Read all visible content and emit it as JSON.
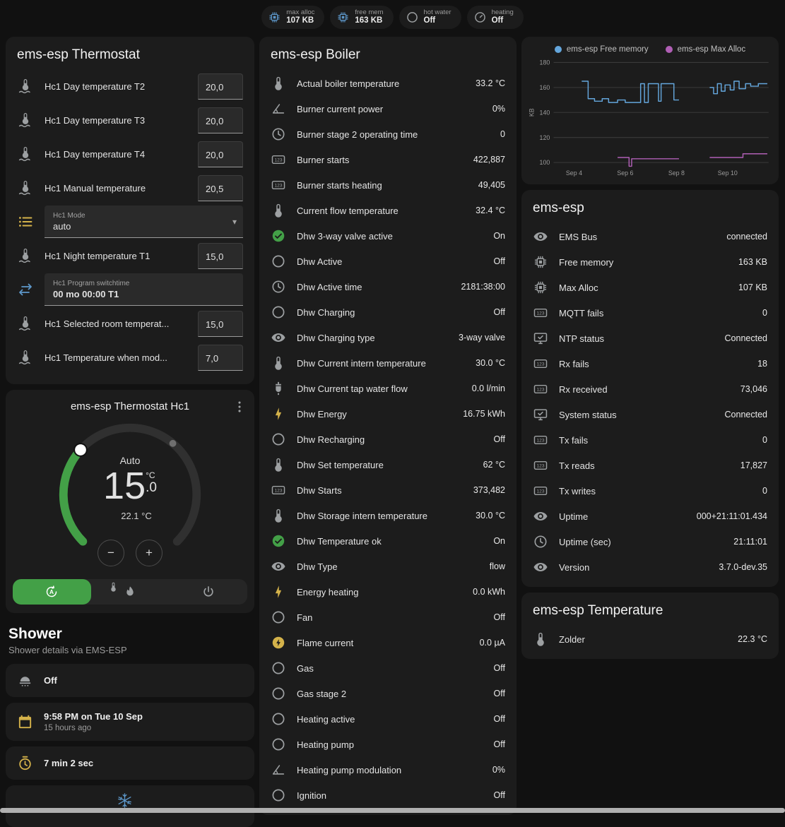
{
  "theme": {
    "bg": "#111111",
    "card": "#1c1c1c",
    "text": "#e1e1e1",
    "secondary": "#9b9b9b",
    "green": "#43a047",
    "yellow": "#d4b24a",
    "blue": "#5d97c9",
    "gray": "#9da0a2",
    "divider": "#2c2c2c"
  },
  "badges": [
    {
      "name": "max-alloc",
      "icon": "chip-icon",
      "color": "blue",
      "label": "max alloc",
      "value": "107 KB"
    },
    {
      "name": "free-mem",
      "icon": "chip-icon",
      "color": "blue",
      "label": "free mem",
      "value": "163 KB"
    },
    {
      "name": "hot-water",
      "icon": "circle-icon",
      "color": "gray",
      "label": "hot water",
      "value": "Off"
    },
    {
      "name": "heating",
      "icon": "gauge-icon",
      "color": "gray",
      "label": "heating",
      "value": "Off"
    }
  ],
  "thermostat_card": {
    "title": "ems-esp Thermostat",
    "rows": [
      {
        "type": "number",
        "icon": "thermometer-water-icon",
        "label": "Hc1 Day temperature T2",
        "input_value": "20,0"
      },
      {
        "type": "number",
        "icon": "thermometer-water-icon",
        "label": "Hc1 Day temperature T3",
        "input_value": "20,0"
      },
      {
        "type": "number",
        "icon": "thermometer-water-icon",
        "label": "Hc1 Day temperature T4",
        "input_value": "20,0"
      },
      {
        "type": "number",
        "icon": "thermometer-water-icon",
        "label": "Hc1 Manual temperature",
        "input_value": "20,5"
      },
      {
        "type": "select",
        "icon": "list-icon",
        "color": "yellow",
        "field_label": "Hc1 Mode",
        "field_value": "auto"
      },
      {
        "type": "number",
        "icon": "thermometer-water-icon",
        "label": "Hc1 Night temperature T1",
        "input_value": "15,0"
      },
      {
        "type": "textfield",
        "icon": "swap-icon",
        "color": "blue",
        "field_label": "Hc1 Program switchtime",
        "field_value": "00 mo 00:00 T1"
      },
      {
        "type": "number",
        "icon": "thermometer-water-icon",
        "label": "Hc1 Selected room temperat...",
        "input_value": "15,0"
      },
      {
        "type": "number",
        "icon": "thermometer-water-icon",
        "label": "Hc1 Temperature when mod...",
        "input_value": "7,0"
      }
    ]
  },
  "hc1": {
    "title": "ems-esp Thermostat Hc1",
    "mode": "Auto",
    "target_int": "15",
    "target_dec": ".0",
    "unit": "°C",
    "current": "22.1 °C",
    "minus_label": "−",
    "plus_label": "+",
    "modes": [
      {
        "name": "auto",
        "icon": "auto-mode-icon",
        "active": true
      },
      {
        "name": "heat",
        "icon": "flame-icon"
      },
      {
        "name": "off",
        "icon": "power-icon"
      }
    ]
  },
  "shower": {
    "title": "Shower",
    "subtitle": "Shower details via EMS-ESP",
    "rows": [
      {
        "icon": "shower-icon",
        "color": "gray",
        "primary": "Off"
      },
      {
        "icon": "calendar-icon",
        "color": "yellow",
        "primary": "9:58 PM on Tue 10 Sep",
        "secondary": "15 hours ago"
      },
      {
        "icon": "timer-icon",
        "color": "yellow",
        "primary": "7 min 2 sec"
      },
      {
        "type": "icon-only",
        "icon": "snowflake-icon",
        "color": "blue",
        "primary": ""
      }
    ]
  },
  "boiler": {
    "title": "ems-esp Boiler",
    "rows": [
      {
        "icon": "thermometer-icon",
        "label": "Actual boiler temperature",
        "value": "33.2 °C"
      },
      {
        "icon": "angle-icon",
        "label": "Burner current power",
        "value": "0%"
      },
      {
        "icon": "clock-icon",
        "label": "Burner stage 2 operating time",
        "value": "0"
      },
      {
        "icon": "counter-icon",
        "label": "Burner starts",
        "value": "422,887"
      },
      {
        "icon": "counter-icon",
        "label": "Burner starts heating",
        "value": "49,405"
      },
      {
        "icon": "thermometer-icon",
        "label": "Current flow temperature",
        "value": "32.4 °C"
      },
      {
        "icon": "check-circle-icon",
        "color": "green",
        "label": "Dhw 3-way valve active",
        "value": "On"
      },
      {
        "icon": "circle-icon",
        "label": "Dhw Active",
        "value": "Off"
      },
      {
        "icon": "clock-icon",
        "label": "Dhw Active time",
        "value": "2181:38:00"
      },
      {
        "icon": "circle-icon",
        "label": "Dhw Charging",
        "value": "Off"
      },
      {
        "icon": "eye-icon",
        "label": "Dhw Charging type",
        "value": "3-way valve"
      },
      {
        "icon": "thermometer-icon",
        "label": "Dhw Current intern temperature",
        "value": "30.0 °C"
      },
      {
        "icon": "water-pump-icon",
        "label": "Dhw Current tap water flow",
        "value": "0.0 l/min"
      },
      {
        "icon": "lightning-icon",
        "color": "yellow",
        "label": "Dhw Energy",
        "value": "16.75 kWh"
      },
      {
        "icon": "circle-icon",
        "label": "Dhw Recharging",
        "value": "Off"
      },
      {
        "icon": "thermometer-icon",
        "label": "Dhw Set temperature",
        "value": "62 °C"
      },
      {
        "icon": "counter-icon",
        "label": "Dhw Starts",
        "value": "373,482"
      },
      {
        "icon": "thermometer-icon",
        "label": "Dhw Storage intern temperature",
        "value": "30.0 °C"
      },
      {
        "icon": "check-circle-icon",
        "color": "green",
        "label": "Dhw Temperature ok",
        "value": "On"
      },
      {
        "icon": "eye-icon",
        "label": "Dhw Type",
        "value": "flow"
      },
      {
        "icon": "lightning-icon",
        "color": "yellow",
        "label": "Energy heating",
        "value": "0.0 kWh"
      },
      {
        "icon": "circle-icon",
        "label": "Fan",
        "value": "Off"
      },
      {
        "icon": "flash-circle-icon",
        "color": "yellow",
        "label": "Flame current",
        "value": "0.0 µA"
      },
      {
        "icon": "circle-icon",
        "label": "Gas",
        "value": "Off"
      },
      {
        "icon": "circle-icon",
        "label": "Gas stage 2",
        "value": "Off"
      },
      {
        "icon": "circle-icon",
        "label": "Heating active",
        "value": "Off"
      },
      {
        "icon": "circle-icon",
        "label": "Heating pump",
        "value": "Off"
      },
      {
        "icon": "angle-icon",
        "label": "Heating pump modulation",
        "value": "0%"
      },
      {
        "icon": "circle-icon",
        "label": "Ignition",
        "value": "Off"
      }
    ]
  },
  "ems": {
    "title": "ems-esp",
    "rows": [
      {
        "icon": "eye-icon",
        "label": "EMS Bus",
        "value": "connected"
      },
      {
        "icon": "chip-icon",
        "label": "Free memory",
        "value": "163 KB"
      },
      {
        "icon": "chip-icon",
        "label": "Max Alloc",
        "value": "107 KB"
      },
      {
        "icon": "counter-icon",
        "label": "MQTT fails",
        "value": "0"
      },
      {
        "icon": "monitor-icon",
        "label": "NTP status",
        "value": "Connected"
      },
      {
        "icon": "counter-icon",
        "label": "Rx fails",
        "value": "18"
      },
      {
        "icon": "counter-icon",
        "label": "Rx received",
        "value": "73,046"
      },
      {
        "icon": "monitor-icon",
        "label": "System status",
        "value": "Connected"
      },
      {
        "icon": "counter-icon",
        "label": "Tx fails",
        "value": "0"
      },
      {
        "icon": "counter-icon",
        "label": "Tx reads",
        "value": "17,827"
      },
      {
        "icon": "counter-icon",
        "label": "Tx writes",
        "value": "0"
      },
      {
        "icon": "eye-icon",
        "label": "Uptime",
        "value": "000+21:11:01.434"
      },
      {
        "icon": "clock-icon",
        "label": "Uptime (sec)",
        "value": "21:11:01"
      },
      {
        "icon": "eye-icon",
        "label": "Version",
        "value": "3.7.0-dev.35"
      }
    ]
  },
  "temperature_card": {
    "title": "ems-esp Temperature",
    "rows": [
      {
        "icon": "thermometer-icon",
        "label": "Zolder",
        "value": "22.3 °C"
      }
    ]
  },
  "chart_data": {
    "type": "line",
    "title": "",
    "xlabel": "",
    "ylabel": "KB",
    "grid": true,
    "legend_position": "top",
    "xlim": [
      3.2,
      11.6
    ],
    "ylim": [
      100,
      180
    ],
    "yticks": [
      100,
      120,
      140,
      160,
      180
    ],
    "xticks": [
      {
        "label": "Sep 4",
        "x": 4
      },
      {
        "label": "Sep 6",
        "x": 6
      },
      {
        "label": "Sep 8",
        "x": 8
      },
      {
        "label": "Sep 10",
        "x": 10
      }
    ],
    "series": [
      {
        "name": "ems-esp Free memory",
        "color": "#64a6dc",
        "segments": [
          [
            [
              4.3,
              165
            ],
            [
              4.55,
              165
            ],
            [
              4.55,
              151
            ],
            [
              4.8,
              151
            ],
            [
              4.8,
              149
            ],
            [
              5.1,
              149
            ],
            [
              5.1,
              151
            ],
            [
              5.35,
              151
            ],
            [
              5.35,
              148
            ],
            [
              5.7,
              148
            ],
            [
              5.7,
              150
            ],
            [
              6.0,
              150
            ],
            [
              6.0,
              148
            ],
            [
              6.6,
              148
            ],
            [
              6.6,
              163
            ],
            [
              6.75,
              163
            ],
            [
              6.75,
              148
            ],
            [
              6.9,
              148
            ],
            [
              6.9,
              163
            ],
            [
              7.3,
              163
            ],
            [
              7.3,
              149
            ],
            [
              7.4,
              149
            ],
            [
              7.4,
              163
            ],
            [
              7.9,
              163
            ],
            [
              7.9,
              150
            ],
            [
              8.1,
              150
            ]
          ],
          [
            [
              9.3,
              160
            ],
            [
              9.45,
              160
            ],
            [
              9.45,
              155
            ],
            [
              9.6,
              155
            ],
            [
              9.6,
              163
            ],
            [
              9.75,
              163
            ],
            [
              9.75,
              157
            ],
            [
              9.9,
              157
            ],
            [
              9.9,
              162
            ],
            [
              10.1,
              162
            ],
            [
              10.1,
              158
            ],
            [
              10.25,
              158
            ],
            [
              10.25,
              165
            ],
            [
              10.45,
              165
            ],
            [
              10.45,
              159
            ],
            [
              10.7,
              159
            ],
            [
              10.7,
              163
            ],
            [
              10.9,
              163
            ],
            [
              10.9,
              161
            ],
            [
              11.2,
              161
            ],
            [
              11.2,
              163
            ],
            [
              11.55,
              163
            ]
          ]
        ]
      },
      {
        "name": "ems-esp Max Alloc",
        "color": "#b05fb5",
        "segments": [
          [
            [
              5.7,
              104
            ],
            [
              6.15,
              104
            ],
            [
              6.15,
              97
            ],
            [
              6.25,
              97
            ],
            [
              6.25,
              103
            ],
            [
              8.1,
              103
            ]
          ],
          [
            [
              9.3,
              104
            ],
            [
              10.6,
              104
            ],
            [
              10.6,
              107
            ],
            [
              11.55,
              107
            ]
          ]
        ]
      }
    ]
  }
}
